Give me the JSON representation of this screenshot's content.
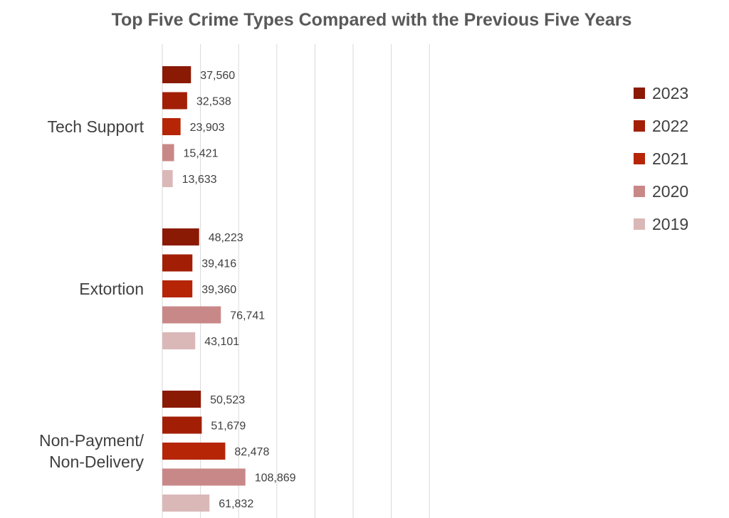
{
  "chart_data": {
    "type": "bar",
    "orientation": "horizontal",
    "title": "Top Five Crime Types Compared with the Previous Five Years",
    "categories": [
      [
        "Tech Support"
      ],
      [
        "Extortion"
      ],
      [
        "Non-Payment/",
        "Non-Delivery"
      ]
    ],
    "series": [
      {
        "name": "2023",
        "color": "#8B1A05",
        "values": [
          37560,
          48223,
          50523
        ],
        "labels": [
          "37,560",
          "48,223",
          "50,523"
        ]
      },
      {
        "name": "2022",
        "color": "#A21F06",
        "values": [
          32538,
          39416,
          51679
        ],
        "labels": [
          "32,538",
          "39,416",
          "51,679"
        ]
      },
      {
        "name": "2021",
        "color": "#B52506",
        "values": [
          23903,
          39360,
          82478
        ],
        "labels": [
          "23,903",
          "39,360",
          "82,478"
        ]
      },
      {
        "name": "2020",
        "color": "#C98888",
        "values": [
          15421,
          76741,
          108869
        ],
        "labels": [
          "15,421",
          "76,741",
          "108,869"
        ]
      },
      {
        "name": "2019",
        "color": "#DBB8B8",
        "values": [
          13633,
          43101,
          61832
        ],
        "labels": [
          "13,633",
          "43,101",
          "61,832"
        ]
      }
    ],
    "xlim": [
      0,
      350000
    ],
    "grid": true,
    "legend": "right"
  }
}
